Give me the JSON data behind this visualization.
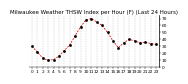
{
  "title": "Milwaukee Weather THSW Index per Hour (F) (Last 24 Hours)",
  "x": [
    0,
    1,
    2,
    3,
    4,
    5,
    6,
    7,
    8,
    9,
    10,
    11,
    12,
    13,
    14,
    15,
    16,
    17,
    18,
    19,
    20,
    21,
    22,
    23
  ],
  "y": [
    30,
    22,
    13,
    10,
    11,
    16,
    24,
    32,
    45,
    58,
    68,
    70,
    65,
    60,
    50,
    38,
    28,
    35,
    40,
    38,
    35,
    36,
    34,
    33
  ],
  "line_color": "#dd0000",
  "marker_color": "#000000",
  "bg_color": "#ffffff",
  "ylim": [
    0,
    75
  ],
  "xlim": [
    -0.5,
    23.5
  ],
  "title_fontsize": 4.0,
  "tick_fontsize": 3.2,
  "yticks": [
    0,
    10,
    20,
    30,
    40,
    50,
    60,
    70
  ],
  "xticks": [
    0,
    1,
    2,
    3,
    4,
    5,
    6,
    7,
    8,
    9,
    10,
    11,
    12,
    13,
    14,
    15,
    16,
    17,
    18,
    19,
    20,
    21,
    22,
    23
  ]
}
